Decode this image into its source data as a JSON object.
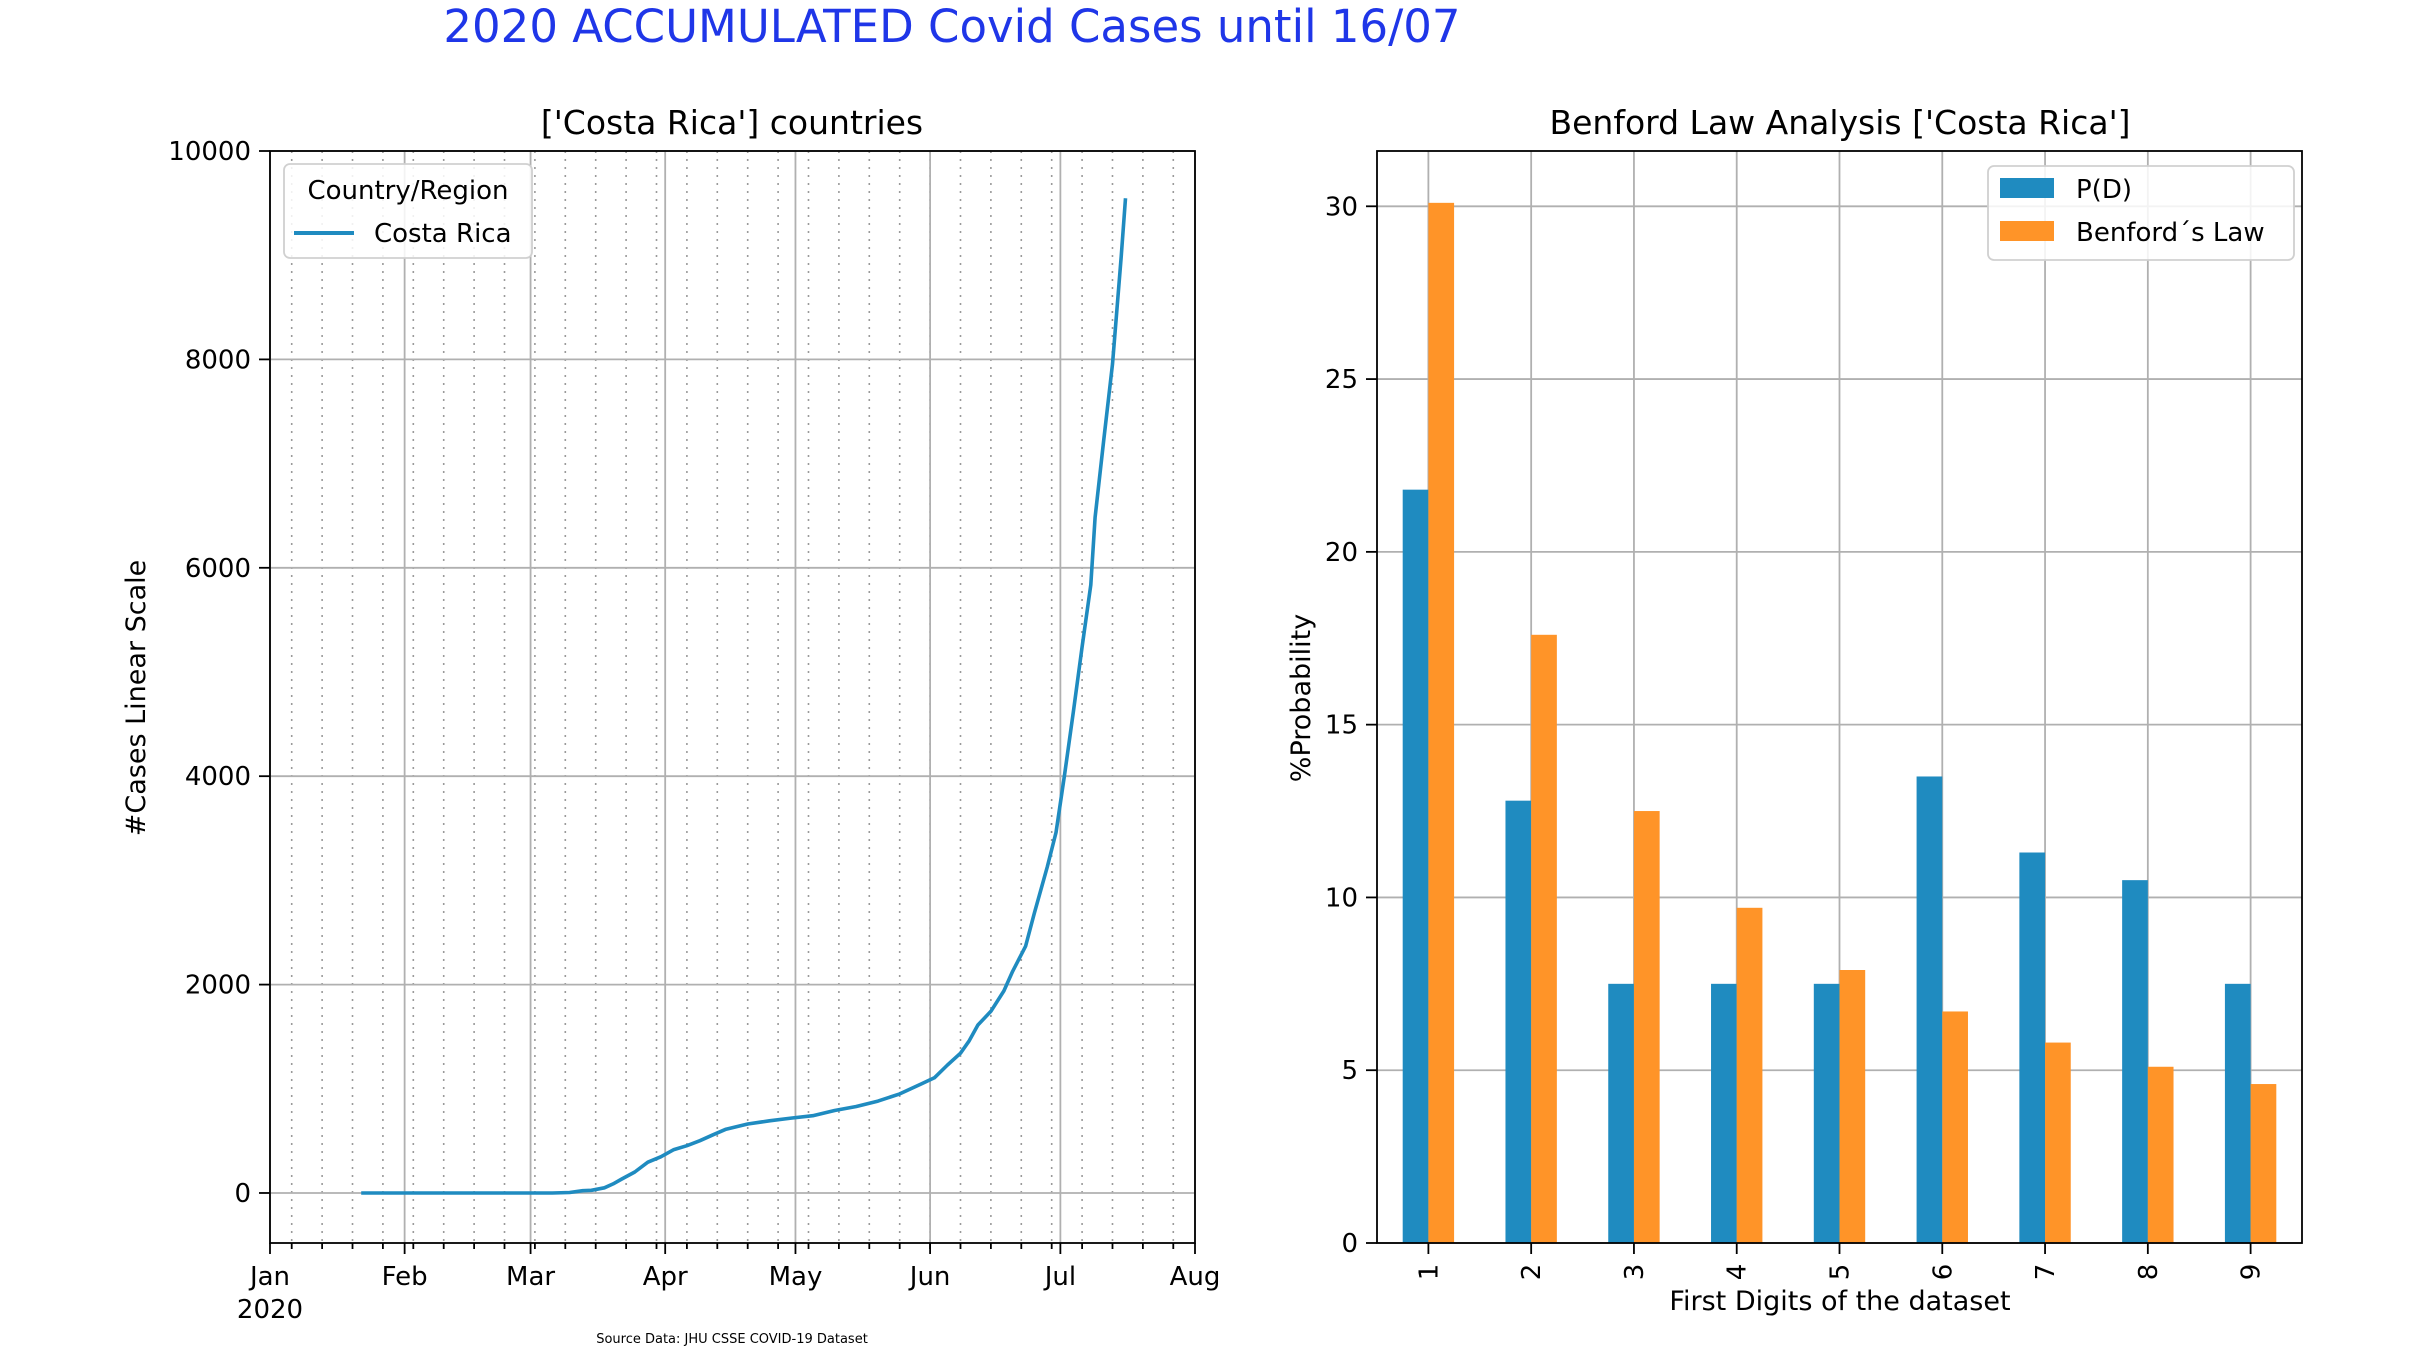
{
  "figure": {
    "suptitle": "2020 ACCUMULATED Covid Cases until 16/07",
    "suptitle_color": "#1f36e8",
    "source_note": "Source Data: JHU CSSE COVID-19 Dataset"
  },
  "chart_data": [
    {
      "type": "line",
      "title": "['Costa Rica'] countries",
      "xlabel": "",
      "ylabel": "#Cases Linear Scale",
      "xlim": [
        "2020-01-01",
        "2020-08-01"
      ],
      "ylim": [
        -480,
        10000
      ],
      "x_tick_labels": [
        "Jan",
        "Feb",
        "Mar",
        "Apr",
        "May",
        "Jun",
        "Jul",
        "Aug"
      ],
      "x_tick_dates": [
        "2020-01-01",
        "2020-02-01",
        "2020-03-01",
        "2020-04-01",
        "2020-05-01",
        "2020-06-01",
        "2020-07-01",
        "2020-08-01"
      ],
      "x_year_label": "2020",
      "y_ticks": [
        0,
        2000,
        4000,
        6000,
        8000,
        10000
      ],
      "grid": "major solid, minor weekly dotted",
      "legend": {
        "title": "Country/Region",
        "placement": "top-left"
      },
      "series": [
        {
          "name": "Costa Rica",
          "color": "#1f8bc0",
          "points": [
            [
              "2020-01-22",
              0
            ],
            [
              "2020-02-15",
              0
            ],
            [
              "2020-03-06",
              0
            ],
            [
              "2020-03-10",
              5
            ],
            [
              "2020-03-13",
              22
            ],
            [
              "2020-03-15",
              26
            ],
            [
              "2020-03-18",
              50
            ],
            [
              "2020-03-20",
              87
            ],
            [
              "2020-03-22",
              134
            ],
            [
              "2020-03-25",
              201
            ],
            [
              "2020-03-28",
              295
            ],
            [
              "2020-03-31",
              347
            ],
            [
              "2020-04-03",
              416
            ],
            [
              "2020-04-06",
              454
            ],
            [
              "2020-04-09",
              502
            ],
            [
              "2020-04-12",
              558
            ],
            [
              "2020-04-15",
              612
            ],
            [
              "2020-04-20",
              662
            ],
            [
              "2020-04-25",
              693
            ],
            [
              "2020-04-30",
              719
            ],
            [
              "2020-05-05",
              742
            ],
            [
              "2020-05-10",
              792
            ],
            [
              "2020-05-15",
              830
            ],
            [
              "2020-05-20",
              882
            ],
            [
              "2020-05-25",
              951
            ],
            [
              "2020-05-30",
              1047
            ],
            [
              "2020-06-02",
              1105
            ],
            [
              "2020-06-05",
              1228
            ],
            [
              "2020-06-08",
              1342
            ],
            [
              "2020-06-10",
              1461
            ],
            [
              "2020-06-12",
              1612
            ],
            [
              "2020-06-15",
              1744
            ],
            [
              "2020-06-18",
              1939
            ],
            [
              "2020-06-20",
              2127
            ],
            [
              "2020-06-23",
              2368
            ],
            [
              "2020-06-25",
              2684
            ],
            [
              "2020-06-28",
              3130
            ],
            [
              "2020-06-30",
              3459
            ],
            [
              "2020-07-02",
              4023
            ],
            [
              "2020-07-04",
              4621
            ],
            [
              "2020-07-06",
              5241
            ],
            [
              "2020-07-08",
              5836
            ],
            [
              "2020-07-09",
              6485
            ],
            [
              "2020-07-11",
              7231
            ],
            [
              "2020-07-13",
              7955
            ],
            [
              "2020-07-15",
              8986
            ],
            [
              "2020-07-16",
              9546
            ]
          ]
        }
      ]
    },
    {
      "type": "bar",
      "title": "Benford Law Analysis ['Costa Rica']",
      "xlabel": "First Digits of the dataset",
      "ylabel": "%Probability",
      "categories": [
        "1",
        "2",
        "3",
        "4",
        "5",
        "6",
        "7",
        "8",
        "9"
      ],
      "ylim": [
        0,
        31.6
      ],
      "y_ticks": [
        0,
        5,
        10,
        15,
        20,
        25,
        30
      ],
      "grid": true,
      "legend": {
        "placement": "top-right"
      },
      "series": [
        {
          "name": "P(D)",
          "color": "#1f8bc0",
          "values": [
            21.8,
            12.8,
            7.5,
            7.5,
            7.5,
            13.5,
            11.3,
            10.5,
            7.5
          ]
        },
        {
          "name": "Benford´s Law",
          "color": "#ff9428",
          "values": [
            30.1,
            17.6,
            12.5,
            9.7,
            7.9,
            6.7,
            5.8,
            5.1,
            4.6
          ]
        }
      ]
    }
  ]
}
